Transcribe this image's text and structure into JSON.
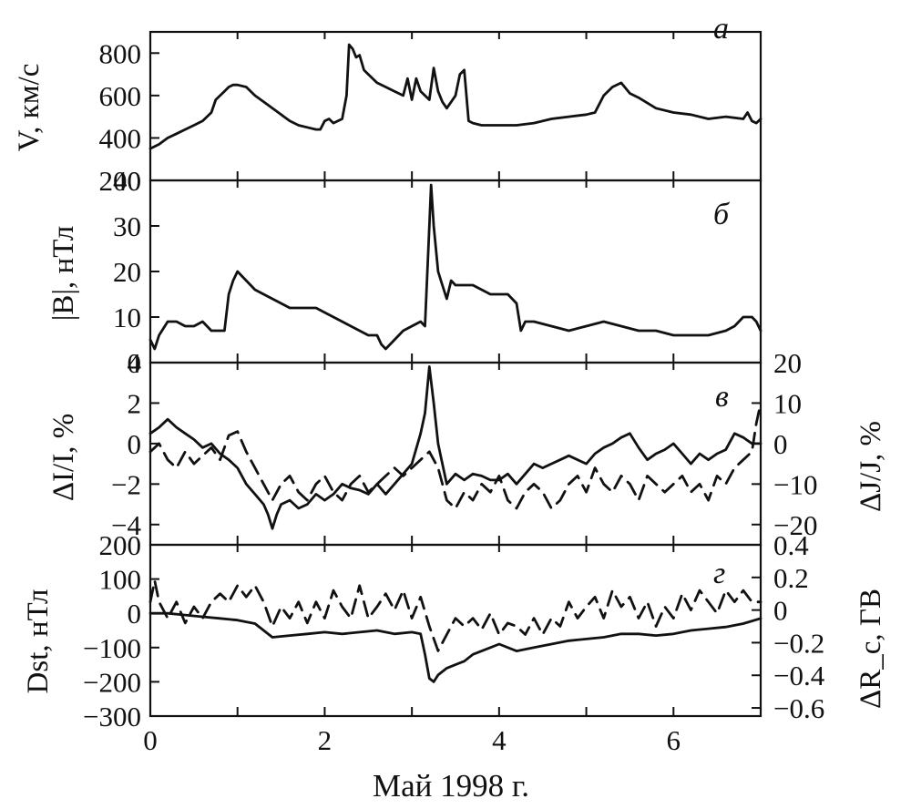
{
  "chart_data": [
    {
      "panel": "a",
      "type": "line",
      "label": "а",
      "ylabel": "V, км/с",
      "ylim": [
        200,
        900
      ],
      "yticks": [
        200,
        400,
        600,
        800
      ],
      "xlim": [
        0,
        7
      ],
      "series": [
        {
          "style": "solid",
          "x": [
            0,
            0.1,
            0.2,
            0.3,
            0.4,
            0.5,
            0.6,
            0.7,
            0.75,
            0.8,
            0.85,
            0.9,
            0.95,
            1.0,
            1.1,
            1.2,
            1.3,
            1.4,
            1.5,
            1.6,
            1.7,
            1.8,
            1.9,
            1.95,
            2.0,
            2.05,
            2.1,
            2.2,
            2.25,
            2.28,
            2.32,
            2.36,
            2.4,
            2.45,
            2.5,
            2.55,
            2.6,
            2.7,
            2.8,
            2.9,
            2.95,
            3.0,
            3.05,
            3.1,
            3.15,
            3.2,
            3.25,
            3.3,
            3.35,
            3.4,
            3.5,
            3.55,
            3.6,
            3.65,
            3.7,
            3.8,
            3.9,
            4.0,
            4.2,
            4.4,
            4.6,
            4.8,
            5.0,
            5.1,
            5.2,
            5.3,
            5.4,
            5.5,
            5.6,
            5.8,
            6.0,
            6.2,
            6.4,
            6.6,
            6.8,
            6.85,
            6.9,
            6.95,
            7.0
          ],
          "y": [
            350,
            370,
            400,
            420,
            440,
            460,
            480,
            520,
            580,
            600,
            620,
            640,
            650,
            650,
            640,
            600,
            570,
            540,
            510,
            480,
            460,
            450,
            440,
            440,
            480,
            490,
            470,
            490,
            600,
            840,
            820,
            780,
            790,
            720,
            700,
            680,
            660,
            640,
            620,
            600,
            680,
            580,
            680,
            620,
            600,
            580,
            730,
            620,
            570,
            540,
            600,
            700,
            720,
            480,
            470,
            460,
            460,
            460,
            460,
            470,
            490,
            500,
            510,
            520,
            600,
            640,
            660,
            610,
            590,
            540,
            520,
            510,
            490,
            500,
            490,
            520,
            480,
            470,
            490
          ]
        }
      ]
    },
    {
      "panel": "b",
      "type": "line",
      "label": "б",
      "ylabel": "|B|, нТл",
      "ylim": [
        0,
        40
      ],
      "yticks": [
        0,
        10,
        20,
        30,
        40
      ],
      "xlim": [
        0,
        7
      ],
      "series": [
        {
          "style": "solid",
          "x": [
            0,
            0.05,
            0.1,
            0.2,
            0.3,
            0.4,
            0.5,
            0.6,
            0.7,
            0.8,
            0.85,
            0.9,
            0.95,
            1.0,
            1.05,
            1.1,
            1.2,
            1.3,
            1.4,
            1.5,
            1.6,
            1.7,
            1.8,
            1.9,
            2.0,
            2.1,
            2.2,
            2.3,
            2.4,
            2.5,
            2.6,
            2.65,
            2.7,
            2.8,
            2.9,
            3.0,
            3.1,
            3.15,
            3.2,
            3.22,
            3.25,
            3.3,
            3.35,
            3.4,
            3.45,
            3.5,
            3.6,
            3.7,
            3.8,
            3.9,
            4.0,
            4.1,
            4.2,
            4.25,
            4.3,
            4.4,
            4.6,
            4.8,
            5.0,
            5.2,
            5.4,
            5.6,
            5.8,
            6.0,
            6.2,
            6.4,
            6.6,
            6.7,
            6.8,
            6.9,
            6.95,
            7.0
          ],
          "y": [
            5,
            3,
            6,
            9,
            9,
            8,
            8,
            9,
            7,
            7,
            7,
            15,
            18,
            20,
            19,
            18,
            16,
            15,
            14,
            13,
            12,
            12,
            12,
            12,
            11,
            10,
            9,
            8,
            7,
            6,
            6,
            4,
            3,
            5,
            7,
            8,
            9,
            8,
            30,
            39,
            30,
            20,
            17,
            14,
            18,
            17,
            17,
            17,
            16,
            15,
            15,
            15,
            13,
            7,
            9,
            9,
            8,
            7,
            8,
            9,
            8,
            7,
            7,
            6,
            6,
            6,
            7,
            8,
            10,
            10,
            9,
            7
          ]
        }
      ]
    },
    {
      "panel": "c",
      "type": "line",
      "label": "в",
      "ylabel": "ΔI/I, %",
      "ylabel_right": "ΔJ/J, %",
      "ylim": [
        -5,
        4
      ],
      "yticks": [
        -4,
        -2,
        0,
        2,
        4
      ],
      "y2lim": [
        -25,
        20
      ],
      "y2ticks": [
        -20,
        -10,
        0,
        10,
        20
      ],
      "xlim": [
        0,
        7
      ],
      "series": [
        {
          "style": "solid",
          "axis": "left",
          "x": [
            0,
            0.1,
            0.2,
            0.3,
            0.4,
            0.5,
            0.6,
            0.7,
            0.8,
            0.9,
            1.0,
            1.1,
            1.2,
            1.3,
            1.35,
            1.4,
            1.45,
            1.5,
            1.6,
            1.7,
            1.8,
            1.9,
            2.0,
            2.1,
            2.2,
            2.3,
            2.4,
            2.5,
            2.6,
            2.7,
            2.8,
            2.9,
            3.0,
            3.1,
            3.15,
            3.2,
            3.25,
            3.3,
            3.35,
            3.4,
            3.5,
            3.6,
            3.7,
            3.8,
            3.9,
            4.0,
            4.1,
            4.2,
            4.3,
            4.4,
            4.5,
            4.6,
            4.7,
            4.8,
            4.9,
            5.0,
            5.1,
            5.2,
            5.3,
            5.4,
            5.5,
            5.6,
            5.7,
            5.8,
            5.9,
            6.0,
            6.1,
            6.2,
            6.3,
            6.4,
            6.5,
            6.6,
            6.7,
            6.8,
            6.9,
            7.0
          ],
          "y": [
            0.5,
            0.8,
            1.2,
            0.8,
            0.5,
            0.2,
            -0.2,
            0,
            -0.5,
            -0.8,
            -1.2,
            -2.0,
            -2.5,
            -3.0,
            -3.5,
            -4.2,
            -3.5,
            -3.0,
            -2.8,
            -3.2,
            -3.0,
            -2.5,
            -2.8,
            -2.5,
            -2.0,
            -2.2,
            -2.3,
            -2.5,
            -2.0,
            -2.5,
            -2.0,
            -1.5,
            -1.0,
            0.5,
            1.5,
            3.8,
            2.0,
            0,
            -1.0,
            -2.0,
            -1.5,
            -1.8,
            -1.5,
            -1.6,
            -1.8,
            -1.8,
            -1.5,
            -2.0,
            -1.5,
            -1.0,
            -1.2,
            -1.0,
            -0.8,
            -0.6,
            -0.8,
            -1.0,
            -0.5,
            -0.2,
            0,
            0.3,
            0.5,
            -0.2,
            -0.8,
            -0.5,
            -0.3,
            0,
            -0.5,
            -1.0,
            -0.5,
            -0.8,
            -0.5,
            -0.3,
            0.5,
            0.3,
            0,
            0
          ]
        },
        {
          "style": "dashed",
          "axis": "right",
          "x": [
            0,
            0.1,
            0.2,
            0.3,
            0.4,
            0.5,
            0.6,
            0.7,
            0.8,
            0.9,
            1.0,
            1.1,
            1.2,
            1.3,
            1.4,
            1.5,
            1.6,
            1.7,
            1.8,
            1.9,
            2.0,
            2.1,
            2.2,
            2.3,
            2.4,
            2.5,
            2.6,
            2.7,
            2.8,
            2.9,
            3.0,
            3.1,
            3.2,
            3.3,
            3.4,
            3.5,
            3.6,
            3.7,
            3.8,
            3.9,
            4.0,
            4.1,
            4.2,
            4.3,
            4.4,
            4.5,
            4.6,
            4.7,
            4.8,
            4.9,
            5.0,
            5.1,
            5.2,
            5.3,
            5.4,
            5.5,
            5.6,
            5.7,
            5.8,
            5.9,
            6.0,
            6.1,
            6.2,
            6.3,
            6.4,
            6.5,
            6.6,
            6.7,
            6.8,
            6.9,
            6.95,
            7.0
          ],
          "y": [
            -2,
            0,
            -4,
            -6,
            -2,
            -5,
            -3,
            -1,
            -4,
            2,
            3,
            -2,
            -6,
            -10,
            -14,
            -10,
            -8,
            -12,
            -14,
            -10,
            -8,
            -12,
            -14,
            -10,
            -8,
            -12,
            -10,
            -8,
            -6,
            -8,
            -6,
            -4,
            -2,
            -6,
            -14,
            -16,
            -12,
            -14,
            -10,
            -12,
            -8,
            -14,
            -16,
            -12,
            -10,
            -12,
            -16,
            -14,
            -10,
            -8,
            -12,
            -6,
            -10,
            -12,
            -8,
            -10,
            -14,
            -8,
            -10,
            -12,
            -10,
            -8,
            -12,
            -10,
            -14,
            -8,
            -10,
            -6,
            -4,
            -2,
            5,
            10
          ]
        }
      ]
    },
    {
      "panel": "d",
      "type": "line",
      "label": "г",
      "ylabel": "Dst, нТл",
      "ylabel_right": "ΔR_c, ГВ",
      "ylim": [
        -300,
        200
      ],
      "yticks": [
        -300,
        -200,
        -100,
        0,
        100,
        200
      ],
      "y2lim": [
        -0.65,
        0.4
      ],
      "y2ticks": [
        -0.6,
        -0.4,
        -0.2,
        0,
        0.2,
        0.4
      ],
      "xlim": [
        0,
        7
      ],
      "xticks": [
        0,
        2,
        4,
        6
      ],
      "xlabel": "Май 1998 г.",
      "series": [
        {
          "style": "solid",
          "axis": "left",
          "x": [
            0,
            0.2,
            0.4,
            0.6,
            0.8,
            1.0,
            1.2,
            1.4,
            1.6,
            1.8,
            2.0,
            2.2,
            2.4,
            2.6,
            2.8,
            3.0,
            3.1,
            3.15,
            3.2,
            3.25,
            3.3,
            3.4,
            3.5,
            3.6,
            3.7,
            3.8,
            3.9,
            4.0,
            4.2,
            4.4,
            4.6,
            4.8,
            5.0,
            5.2,
            5.4,
            5.6,
            5.8,
            6.0,
            6.2,
            6.4,
            6.6,
            6.8,
            7.0
          ],
          "y": [
            0,
            0,
            -5,
            -10,
            -15,
            -20,
            -30,
            -70,
            -65,
            -60,
            -55,
            -60,
            -55,
            -50,
            -60,
            -55,
            -60,
            -120,
            -190,
            -200,
            -180,
            -160,
            -150,
            -140,
            -120,
            -110,
            -100,
            -90,
            -110,
            -100,
            -90,
            -80,
            -75,
            -70,
            -60,
            -60,
            -65,
            -60,
            -50,
            -45,
            -40,
            -30,
            -15
          ]
        },
        {
          "style": "dashed",
          "axis": "right",
          "x": [
            0,
            0.05,
            0.1,
            0.2,
            0.3,
            0.4,
            0.5,
            0.6,
            0.7,
            0.8,
            0.9,
            1.0,
            1.1,
            1.2,
            1.3,
            1.4,
            1.5,
            1.6,
            1.7,
            1.8,
            1.9,
            2.0,
            2.1,
            2.2,
            2.3,
            2.4,
            2.5,
            2.6,
            2.7,
            2.8,
            2.9,
            3.0,
            3.1,
            3.2,
            3.3,
            3.4,
            3.5,
            3.6,
            3.7,
            3.8,
            3.9,
            4.0,
            4.1,
            4.2,
            4.3,
            4.4,
            4.5,
            4.6,
            4.7,
            4.8,
            4.9,
            5.0,
            5.1,
            5.2,
            5.3,
            5.4,
            5.5,
            5.6,
            5.7,
            5.8,
            5.9,
            6.0,
            6.1,
            6.2,
            6.3,
            6.4,
            6.5,
            6.6,
            6.7,
            6.8,
            6.9,
            7.0
          ],
          "y": [
            0.05,
            0.18,
            0.05,
            -0.05,
            0.05,
            -0.08,
            0.02,
            -0.05,
            0.05,
            0.1,
            0.05,
            0.15,
            0.08,
            0.15,
            0.05,
            -0.1,
            0.02,
            -0.05,
            0.05,
            -0.08,
            0.05,
            -0.05,
            0.12,
            0.02,
            -0.05,
            0.15,
            -0.05,
            0.02,
            0.1,
            0.0,
            0.12,
            -0.05,
            0.08,
            -0.1,
            -0.25,
            -0.15,
            -0.05,
            -0.1,
            -0.05,
            -0.12,
            -0.02,
            -0.15,
            -0.08,
            -0.1,
            -0.15,
            -0.05,
            -0.15,
            -0.05,
            -0.1,
            0.05,
            -0.05,
            0.02,
            0.08,
            -0.05,
            0.12,
            0.02,
            0.08,
            -0.05,
            0.05,
            -0.1,
            0.02,
            -0.05,
            0.1,
            0.0,
            0.12,
            0.05,
            -0.02,
            0.12,
            0.05,
            0.12,
            0.05,
            0.05
          ]
        }
      ]
    }
  ]
}
